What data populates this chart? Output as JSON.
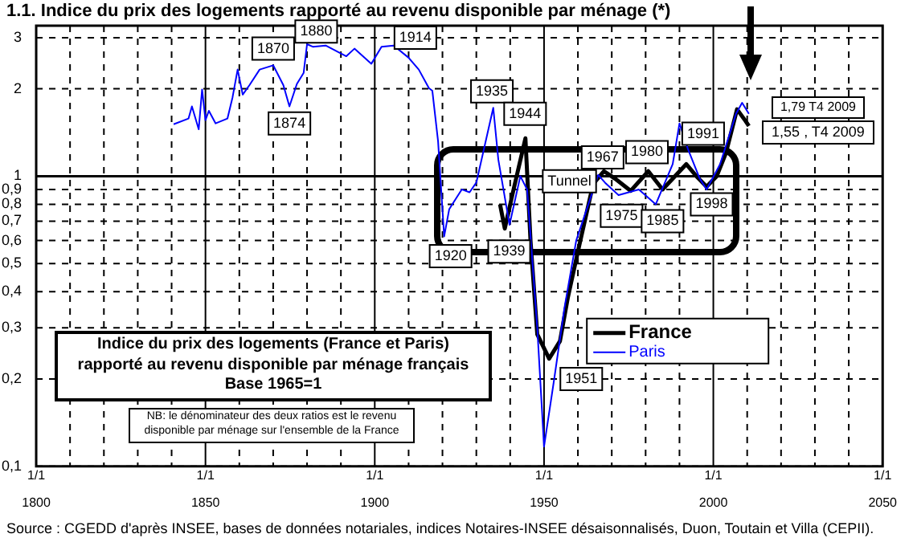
{
  "chart_data": {
    "type": "line",
    "title": "1.1. Indice du prix des logements rapporté au revenu disponible par ménage (*)",
    "series": [
      {
        "name": "France",
        "color": "#000000",
        "x": [
          1937,
          1938.4,
          1941,
          1944.5,
          1946,
          1948,
          1951.5,
          1954.7,
          1957,
          1960,
          1964.5,
          1967.7,
          1971,
          1975.6,
          1980.8,
          1985,
          1988,
          1992,
          1995,
          1998,
          2001,
          2003.7,
          2007,
          2009.5,
          2010.5
        ],
        "values": [
          0.8,
          0.66,
          0.9,
          1.35,
          0.6,
          0.285,
          0.235,
          0.27,
          0.38,
          0.55,
          0.94,
          1.04,
          0.98,
          0.89,
          1.04,
          0.9,
          0.98,
          1.1,
          1.0,
          0.92,
          1.0,
          1.2,
          1.7,
          1.55,
          1.49
        ]
      },
      {
        "name": "Paris",
        "color": "#0000ff",
        "x": [
          1840.6,
          1845,
          1846,
          1848,
          1849,
          1850,
          1851,
          1853,
          1856.5,
          1858,
          1859.5,
          1861,
          1863,
          1866,
          1870,
          1873,
          1874.8,
          1877,
          1879,
          1880,
          1881.8,
          1885.5,
          1891.6,
          1894,
          1899,
          1902,
          1905.6,
          1910,
          1913,
          1916,
          1917,
          1918.7,
          1920.5,
          1922,
          1925.7,
          1928,
          1930,
          1935,
          1936.5,
          1939.8,
          1943,
          1945,
          1948,
          1950,
          1953,
          1956,
          1959.5,
          1966,
          1968,
          1972,
          1978,
          1983,
          1988,
          1990,
          1992.5,
          1996,
          1998,
          2002,
          2006.7,
          2008.5,
          2010.5
        ],
        "values": [
          1.51,
          1.58,
          1.74,
          1.45,
          1.99,
          1.56,
          1.68,
          1.52,
          1.58,
          1.87,
          2.33,
          1.91,
          2.06,
          2.33,
          2.41,
          2.06,
          1.74,
          2.08,
          2.27,
          2.85,
          2.79,
          2.82,
          2.59,
          2.75,
          2.44,
          2.79,
          2.82,
          2.56,
          2.33,
          2.01,
          1.97,
          1.32,
          0.62,
          0.77,
          0.9,
          0.88,
          0.95,
          1.72,
          1.14,
          0.68,
          1.0,
          0.9,
          0.3,
          0.117,
          0.2,
          0.35,
          0.6,
          1.01,
          0.95,
          0.86,
          0.9,
          0.8,
          1.1,
          1.52,
          1.24,
          0.98,
          0.9,
          1.1,
          1.64,
          1.79,
          1.64
        ]
      }
    ],
    "xlim": [
      1800,
      2050
    ],
    "xticks": [
      1800,
      {
        "value": 1810,
        "label": null
      },
      {
        "value": 1820,
        "label": null
      },
      {
        "value": 1830,
        "label": null
      },
      {
        "value": 1840,
        "label": null
      },
      1850,
      {
        "value": 1860,
        "label": null
      },
      {
        "value": 1870,
        "label": null
      },
      {
        "value": 1880,
        "label": null
      },
      {
        "value": 1890,
        "label": null
      },
      1900,
      {
        "value": 1910,
        "label": null
      },
      {
        "value": 1920,
        "label": null
      },
      {
        "value": 1930,
        "label": null
      },
      {
        "value": 1940,
        "label": null
      },
      1950,
      {
        "value": 1960,
        "label": null
      },
      {
        "value": 1970,
        "label": null
      },
      {
        "value": 1980,
        "label": null
      },
      {
        "value": 1990,
        "label": null
      },
      2000,
      {
        "value": 2010,
        "label": null
      },
      {
        "value": 2020,
        "label": null
      },
      {
        "value": 2030,
        "label": null
      },
      {
        "value": 2040,
        "label": null
      },
      2050
    ],
    "ylim": [
      0.1,
      3.3
    ],
    "log": true,
    "yticks": [
      {
        "value": 0.1,
        "label": "0,1"
      },
      {
        "value": 0.2,
        "label": "0,2"
      },
      {
        "value": 0.3,
        "label": "0,3"
      },
      {
        "value": 0.4,
        "label": "0,4"
      },
      {
        "value": 0.5,
        "label": "0,5"
      },
      {
        "value": 0.6,
        "label": "0,6"
      },
      {
        "value": 0.7,
        "label": "0,7"
      },
      {
        "value": 0.8,
        "label": "0,8"
      },
      {
        "value": 0.9,
        "label": "0,9"
      },
      1,
      2,
      3
    ],
    "grid": true,
    "legend": "bottom right",
    "ref_lines": [
      {
        "axis": "y",
        "value": 1,
        "color": "#000000"
      }
    ],
    "annotations": [
      "Indice du prix des logements (France et Paris)\nrapporté au revenu disponible par ménage français\nBase 1965=1",
      "NB: le dénominateur des deux ratios est le revenu\ndisponible par ménage sur l'ensemble de la France",
      "Source : CGEDD d'après INSEE, bases de données notariales, indices Notaires-INSEE désaisonnalisés, Duon, Toutain et Villa (CEPII).",
      {
        "text": "1870",
        "x": 1870,
        "y": 2.75
      },
      {
        "text": "1874",
        "x": 1874.8,
        "y": 1.52
      },
      {
        "text": "1880",
        "x": 1882.7,
        "y": 3.15
      },
      {
        "text": "1914",
        "x": 1912,
        "y": 3.0
      },
      {
        "text": "1920",
        "x": 1922.4,
        "y": 0.53
      },
      {
        "text": "1935",
        "x": 1934.6,
        "y": 1.96
      },
      {
        "text": "1944",
        "x": 1944.4,
        "y": 1.64
      },
      {
        "text": "1939",
        "x": 1939.7,
        "y": 0.55
      },
      {
        "text": "1951",
        "x": 1961,
        "y": 0.2
      },
      {
        "text": "Tunnel",
        "x": 1957.5,
        "y": 0.96
      },
      {
        "text": "1967",
        "x": 1967.3,
        "y": 1.16
      },
      {
        "text": "1980",
        "x": 1980.4,
        "y": 1.21
      },
      {
        "text": "1991",
        "x": 1997,
        "y": 1.4
      },
      {
        "text": "1975",
        "x": 1972.9,
        "y": 0.73
      },
      {
        "text": "1985",
        "x": 1985,
        "y": 0.7
      },
      {
        "text": "1998",
        "x": 1999.5,
        "y": 0.8
      },
      "1,79 T4 2009",
      "1,55 , T4 2009",
      "1/1"
    ]
  }
}
